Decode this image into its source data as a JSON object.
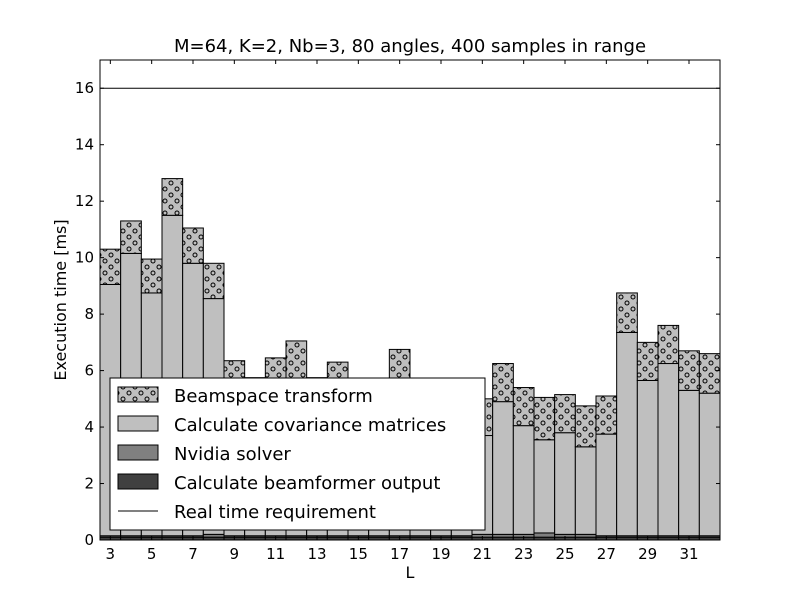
{
  "chart_data": {
    "type": "bar",
    "stacked": true,
    "title": "M=64, K=2, Nb=3, 80 angles, 400 samples in range",
    "xlabel": "L",
    "ylabel": "Execution time [ms]",
    "xlim": [
      2.5,
      32.5
    ],
    "ylim": [
      0,
      17
    ],
    "x_ticks": [
      3,
      5,
      7,
      9,
      11,
      13,
      15,
      17,
      19,
      21,
      23,
      25,
      27,
      29,
      31
    ],
    "y_ticks": [
      0,
      2,
      4,
      6,
      8,
      10,
      12,
      14,
      16
    ],
    "grid": false,
    "legend_position": "lower-left",
    "x": [
      3,
      4,
      5,
      6,
      7,
      8,
      9,
      10,
      11,
      12,
      13,
      14,
      15,
      16,
      17,
      18,
      19,
      20,
      21,
      22,
      23,
      24,
      25,
      26,
      27,
      28,
      29,
      30,
      31,
      32
    ],
    "series": [
      {
        "name": "Calculate beamformer output",
        "color": "#404040",
        "hatch": "none",
        "values": [
          0.1,
          0.1,
          0.1,
          0.1,
          0.1,
          0.1,
          0.1,
          0.1,
          0.1,
          0.1,
          0.1,
          0.1,
          0.1,
          0.1,
          0.1,
          0.1,
          0.1,
          0.1,
          0.1,
          0.1,
          0.1,
          0.1,
          0.1,
          0.1,
          0.1,
          0.1,
          0.1,
          0.1,
          0.1,
          0.1
        ]
      },
      {
        "name": "Nvidia solver",
        "color": "#808080",
        "hatch": "none",
        "values": [
          0.05,
          0.05,
          0.05,
          0.05,
          0.05,
          0.1,
          0.05,
          0.05,
          0.05,
          0.05,
          0.05,
          0.05,
          0.05,
          0.05,
          0.05,
          0.05,
          0.05,
          0.05,
          0.1,
          0.1,
          0.1,
          0.15,
          0.1,
          0.1,
          0.05,
          0.05,
          0.05,
          0.05,
          0.05,
          0.05
        ]
      },
      {
        "name": "Calculate covariance matrices",
        "color": "#bfbfbf",
        "hatch": "none",
        "values": [
          8.9,
          10.0,
          8.6,
          11.35,
          9.65,
          8.35,
          5.0,
          5.0,
          5.0,
          5.0,
          5.0,
          5.0,
          5.0,
          5.0,
          5.5,
          5.0,
          5.0,
          5.0,
          3.5,
          4.7,
          3.85,
          3.3,
          3.6,
          3.1,
          3.6,
          7.2,
          5.5,
          6.1,
          5.15,
          5.05
        ]
      },
      {
        "name": "Beamspace transform",
        "color": "#bfbfbf",
        "hatch": "circles",
        "values": [
          1.25,
          1.15,
          1.2,
          1.3,
          1.25,
          1.25,
          1.2,
          0.6,
          1.3,
          1.9,
          0.6,
          1.15,
          0.5,
          0.5,
          1.1,
          0.5,
          0.5,
          0.5,
          1.3,
          1.35,
          1.35,
          1.5,
          1.35,
          1.45,
          1.35,
          1.4,
          1.35,
          1.35,
          1.4,
          1.4
        ]
      }
    ],
    "reference_line": {
      "name": "Real time requirement",
      "y": 16,
      "color": "#000000"
    }
  }
}
